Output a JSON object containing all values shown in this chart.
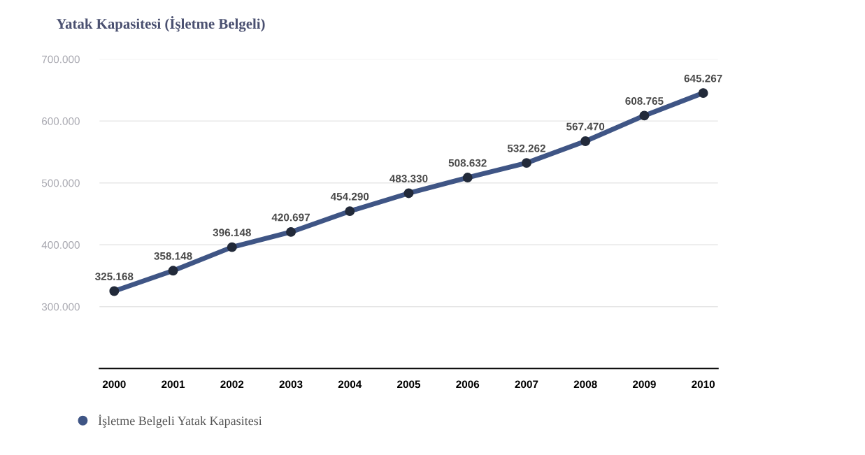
{
  "chart_data": {
    "type": "line",
    "title": "Yatak Kapasitesi (İşletme Belgeli)",
    "categories": [
      "2000",
      "2001",
      "2002",
      "2003",
      "2004",
      "2005",
      "2006",
      "2007",
      "2008",
      "2009",
      "2010"
    ],
    "series": [
      {
        "name": "İşletme Belgeli Yatak Kapasitesi",
        "color": "#3f5585",
        "values": [
          325168,
          358148,
          396148,
          420697,
          454290,
          483330,
          508632,
          532262,
          567470,
          608765,
          645267
        ],
        "value_labels": [
          "325.168",
          "358.148",
          "396.148",
          "420.697",
          "454.290",
          "483.330",
          "508.632",
          "532.262",
          "567.470",
          "608.765",
          "645.267"
        ]
      }
    ],
    "ylim": [
      200000,
      700000
    ],
    "yticks": [
      {
        "value": 300000,
        "label": "300.000"
      },
      {
        "value": 400000,
        "label": "400.000"
      },
      {
        "value": 500000,
        "label": "500.000"
      },
      {
        "value": 600000,
        "label": "600.000"
      },
      {
        "value": 700000,
        "label": "700.000"
      }
    ],
    "grid": "y",
    "legend": "bottom left",
    "marker": "circle",
    "line_style": "solid"
  }
}
